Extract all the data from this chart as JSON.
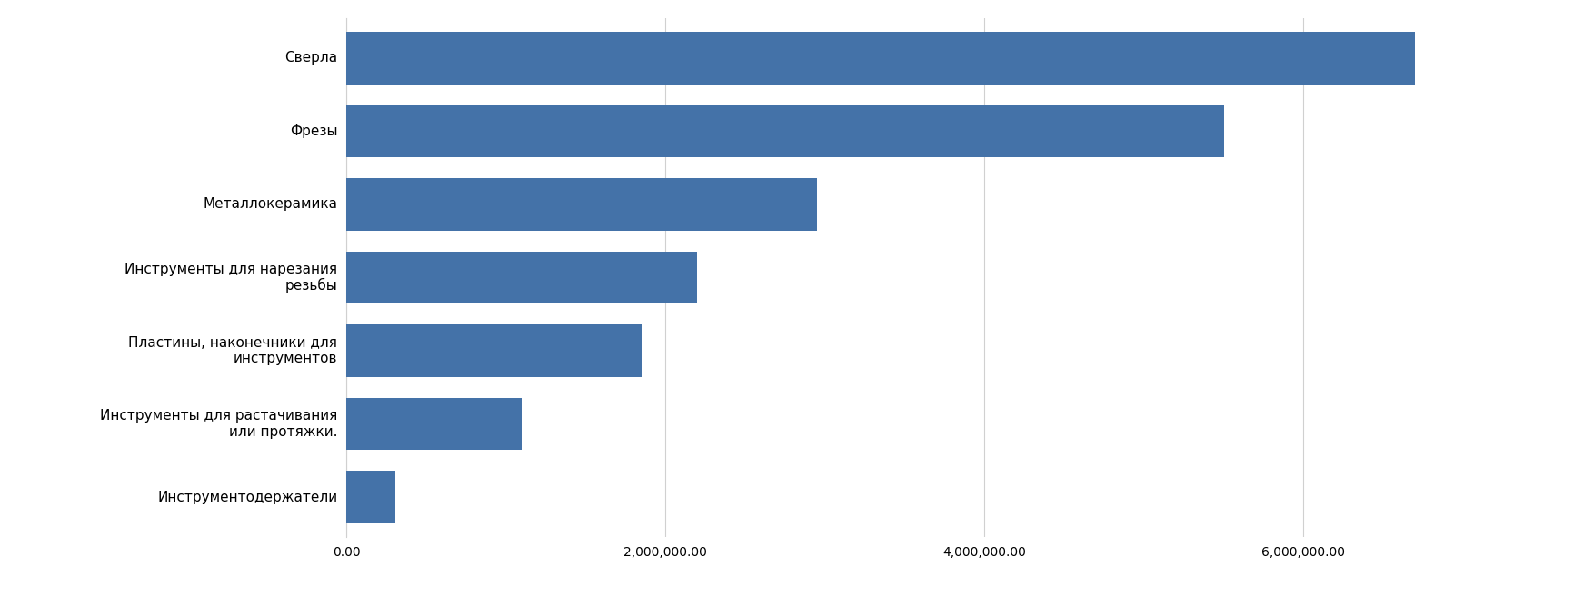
{
  "categories": [
    "Инструментодержатели",
    "Инструменты для растачивания\nили протяжки.",
    "Пластины, наконечники для\nинструментов",
    "Инструменты для нарезания\nрезьбы",
    "Металлокерамика",
    "Фрезы",
    "Сверла"
  ],
  "values": [
    310000,
    1100000,
    1850000,
    2200000,
    2950000,
    5500000,
    6700000
  ],
  "bar_color": "#4472a8",
  "background_color": "#ffffff",
  "grid_color": "#d0d0d0",
  "xlim": [
    0,
    7400000
  ],
  "xticks": [
    0,
    2000000,
    4000000,
    6000000
  ],
  "bar_height": 0.72,
  "figsize": [
    17.32,
    6.57
  ],
  "dpi": 100,
  "label_fontsize": 11,
  "tick_fontsize": 10
}
